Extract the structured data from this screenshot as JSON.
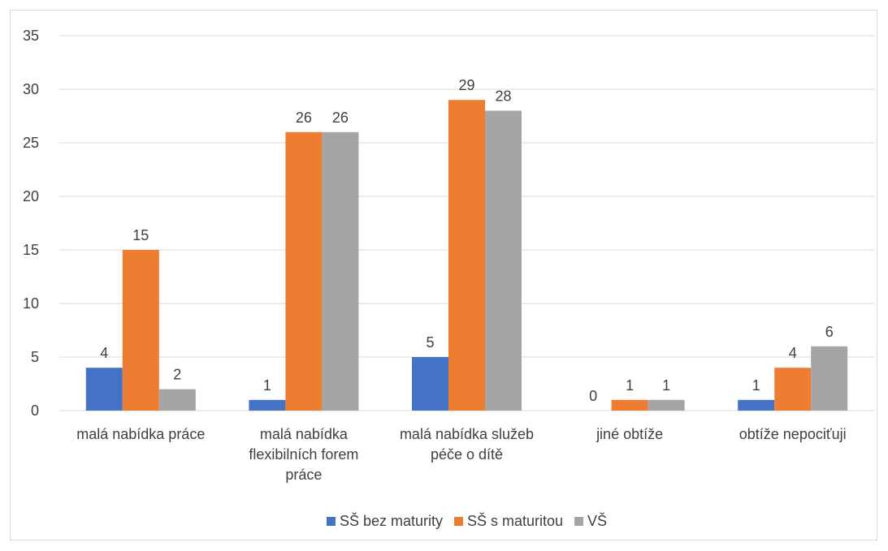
{
  "chart_data": {
    "type": "bar",
    "categories": [
      [
        "malá nabídka práce"
      ],
      [
        "malá nabídka",
        "flexibilních forem",
        "práce"
      ],
      [
        "malá nabídka služeb",
        "péče o dítě"
      ],
      [
        "jiné obtíže"
      ],
      [
        "obtíže nepociťuji"
      ]
    ],
    "series": [
      {
        "name": "SŠ bez maturity",
        "color": "#4472c4",
        "values": [
          4,
          1,
          5,
          0,
          1
        ]
      },
      {
        "name": "SŠ s maturitou",
        "color": "#ed7d31",
        "values": [
          15,
          26,
          29,
          1,
          4
        ]
      },
      {
        "name": "VŠ",
        "color": "#a5a5a5",
        "values": [
          2,
          26,
          28,
          1,
          6
        ]
      }
    ],
    "ylim": [
      0,
      35
    ],
    "yticks": [
      0,
      5,
      10,
      15,
      20,
      25,
      30,
      35
    ],
    "grid": true,
    "legend": "bottom",
    "data_labels": true
  }
}
